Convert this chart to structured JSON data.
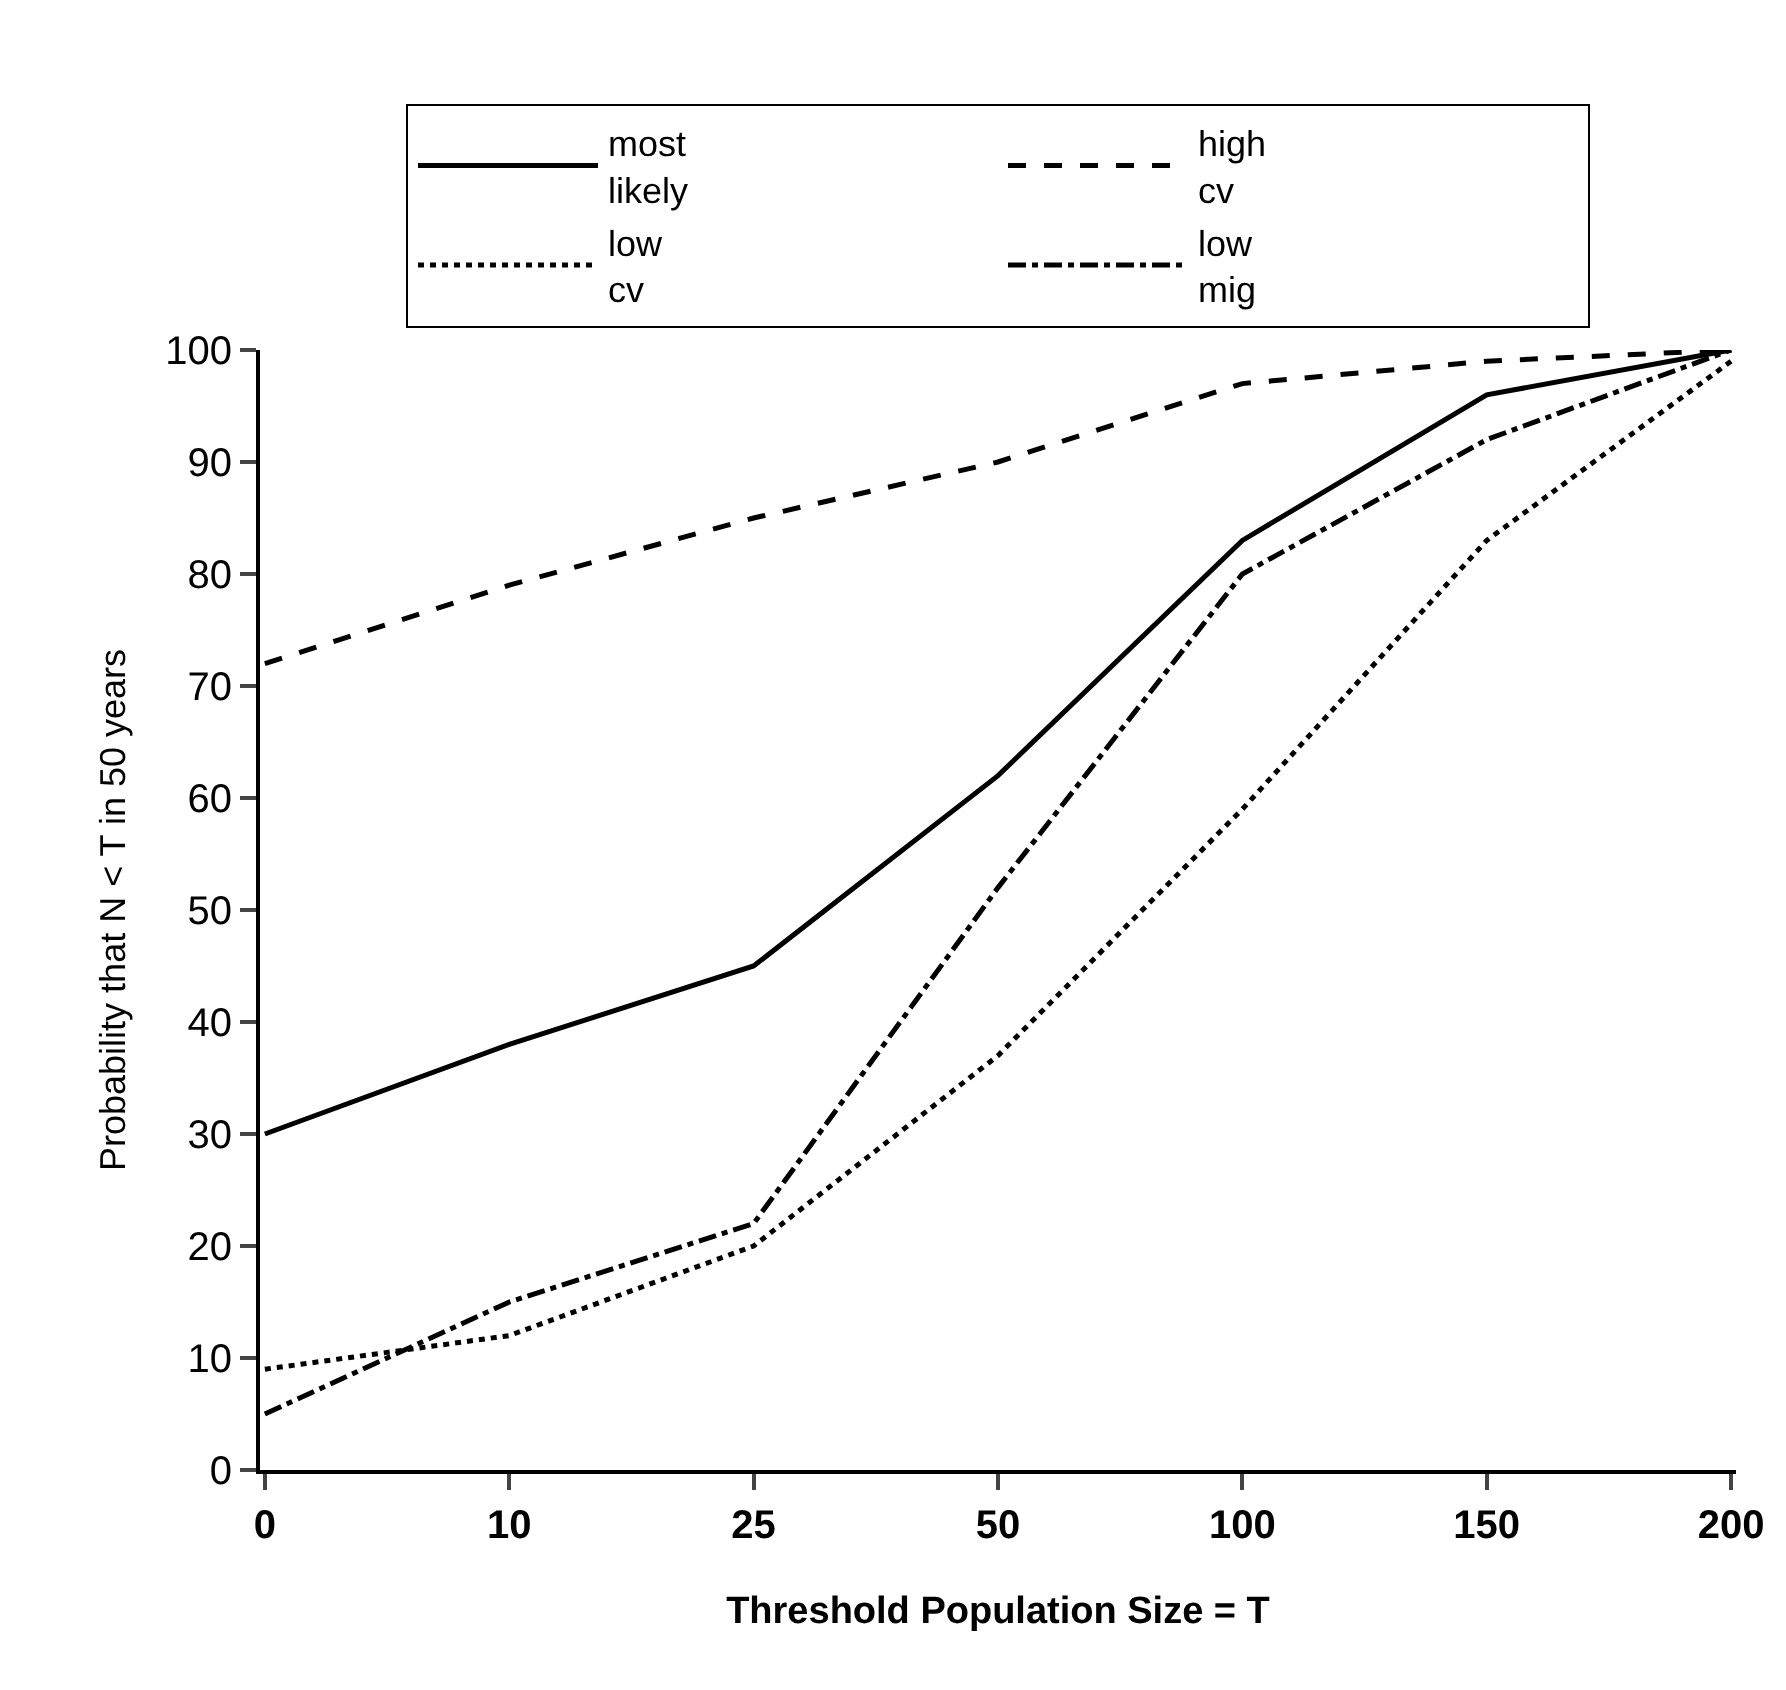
{
  "chart_data": {
    "type": "line",
    "xlabel": "Threshold Population Size = T",
    "ylabel": "Probability that N < T in 50 years",
    "categories": [
      "0",
      "10",
      "25",
      "50",
      "100",
      "150",
      "200"
    ],
    "ylim": [
      0,
      100
    ],
    "yticks": [
      0,
      10,
      20,
      30,
      40,
      50,
      60,
      70,
      80,
      90,
      100
    ],
    "grid": false,
    "legend": "top",
    "marker": "none",
    "series": [
      {
        "name": "most likely",
        "color": "#000000",
        "line_style": "solid",
        "values": [
          30,
          38,
          45,
          62,
          83,
          96,
          100
        ]
      },
      {
        "name": "high cv",
        "color": "#000000",
        "line_style": "dashed",
        "values": [
          72,
          79,
          85,
          90,
          97,
          99,
          100
        ]
      },
      {
        "name": "low cv",
        "color": "#000000",
        "line_style": "dotted",
        "values": [
          9,
          12,
          20,
          37,
          59,
          83,
          99
        ]
      },
      {
        "name": "low mig",
        "color": "#000000",
        "line_style": "dashdot",
        "values": [
          5,
          15,
          22,
          52,
          80,
          92,
          100
        ]
      }
    ]
  }
}
